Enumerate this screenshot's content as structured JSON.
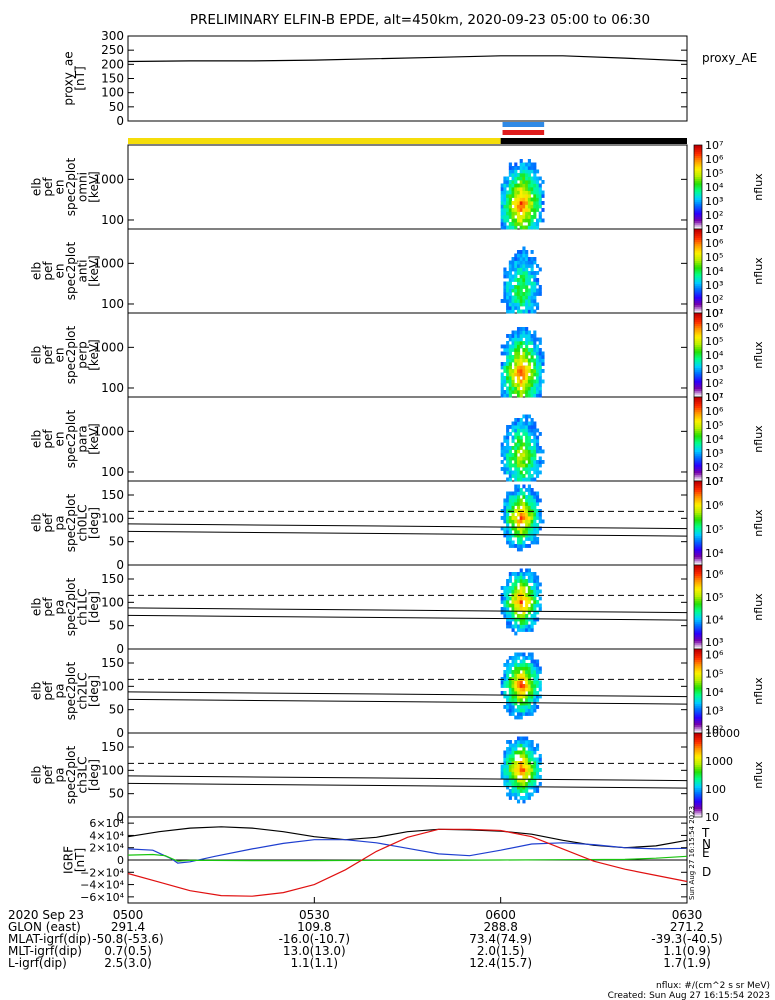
{
  "title": "PRELIMINARY ELFIN-B EPDE, alt=450km, 2020-09-23 05:00 to 06:30",
  "colors": {
    "line": "#000000",
    "sunlight": "#f5dd0a",
    "eclipse": "#000000",
    "science_blue": "#2f8ae6",
    "science_red": "#e01d1d",
    "igrf_T": "#000000",
    "igrf_N": "#1f3fd0",
    "igrf_E": "#19c40f",
    "igrf_D": "#e01010"
  },
  "colormap_stops": [
    "#ffffff",
    "#7a00a8",
    "#2a00ff",
    "#0066ff",
    "#00d2ff",
    "#00ff8c",
    "#26e000",
    "#b8f000",
    "#fff000",
    "#ff9a00",
    "#ff2a00",
    "#c40000"
  ],
  "time_axis": {
    "start": "05:00",
    "end": "06:30",
    "date_label": "2020 Sep 23",
    "ticks": [
      {
        "t": 0,
        "label": "0500"
      },
      {
        "t": 30,
        "label": "0530"
      },
      {
        "t": 60,
        "label": "0600"
      },
      {
        "t": 90,
        "label": "0630"
      }
    ]
  },
  "ephemeris": [
    {
      "label": "GLON (east)",
      "values": [
        "291.4",
        "109.8",
        "288.8",
        "271.2"
      ]
    },
    {
      "label": "MLAT-igrf(dip)",
      "values": [
        "-50.8(-53.6)",
        "-16.0(-10.7)",
        "73.4(74.9)",
        "-39.3(-40.5)"
      ]
    },
    {
      "label": "MLT-igrf(dip)",
      "values": [
        "0.7(0.5)",
        "13.0(13.0)",
        "2.0(1.5)",
        "1.1(0.9)"
      ]
    },
    {
      "label": "L-igrf(dip)",
      "values": [
        "2.5(3.0)",
        "1.1(1.1)",
        "12.4(15.7)",
        "1.7(1.9)"
      ]
    }
  ],
  "footer": {
    "units": "nflux: #/(cm^2 s sr MeV)",
    "created": "Created: Sun Aug 27 16:15:54 2023",
    "sidebar_stamp": "Sun Aug 27 16:15:54 2023"
  },
  "status_bars": {
    "sunlight_until_min": 60,
    "science_zones": [
      {
        "start": 60.3,
        "end": 67
      }
    ]
  },
  "chart_data": [
    {
      "type": "line",
      "name": "proxy_ae",
      "ylabel_lines": [
        "proxy_ae",
        "[nT]"
      ],
      "legend": "proxy_AE",
      "ylim": [
        0,
        300
      ],
      "yticks": [
        0,
        50,
        100,
        150,
        200,
        250,
        300
      ],
      "x": [
        0,
        10,
        20,
        30,
        40,
        50,
        60,
        70,
        80,
        90
      ],
      "values": [
        210,
        212,
        212,
        215,
        220,
        225,
        230,
        230,
        222,
        212
      ]
    },
    {
      "type": "heatmap",
      "name": "omni",
      "ylabel_lines": [
        "elb",
        "pef",
        "en",
        "spec2plot",
        "omni",
        "[keV]"
      ],
      "yscale": "log",
      "ylim": [
        60,
        7000
      ],
      "yticks": [
        {
          "v": 100,
          "label": "100"
        },
        {
          "v": 1000,
          "label": "1000"
        }
      ],
      "time_range": [
        60,
        67
      ],
      "cbar": {
        "label": "nflux",
        "log_min": 1,
        "log_max": 7,
        "ticks": [
          1,
          2,
          3,
          4,
          5,
          6,
          7
        ]
      }
    },
    {
      "type": "heatmap",
      "name": "anti",
      "ylabel_lines": [
        "elb",
        "pef",
        "en",
        "spec2plot",
        "anti",
        "[keV]"
      ],
      "yscale": "log",
      "ylim": [
        60,
        7000
      ],
      "yticks": [
        {
          "v": 100,
          "label": "100"
        },
        {
          "v": 1000,
          "label": "1000"
        }
      ],
      "time_range": [
        60,
        67
      ],
      "cbar": {
        "label": "nflux",
        "log_min": 1,
        "log_max": 7,
        "ticks": [
          1,
          2,
          3,
          4,
          5,
          6,
          7
        ]
      }
    },
    {
      "type": "heatmap",
      "name": "perp",
      "ylabel_lines": [
        "elb",
        "pef",
        "en",
        "spec2plot",
        "perp",
        "[keV]"
      ],
      "yscale": "log",
      "ylim": [
        60,
        7000
      ],
      "yticks": [
        {
          "v": 100,
          "label": "100"
        },
        {
          "v": 1000,
          "label": "1000"
        }
      ],
      "time_range": [
        60,
        67
      ],
      "cbar": {
        "label": "nflux",
        "log_min": 1,
        "log_max": 7,
        "ticks": [
          1,
          2,
          3,
          4,
          5,
          6,
          7
        ]
      }
    },
    {
      "type": "heatmap",
      "name": "para",
      "ylabel_lines": [
        "elb",
        "pef",
        "en",
        "spec2plot",
        "para",
        "[keV]"
      ],
      "yscale": "log",
      "ylim": [
        60,
        7000
      ],
      "yticks": [
        {
          "v": 100,
          "label": "100"
        },
        {
          "v": 1000,
          "label": "1000"
        }
      ],
      "time_range": [
        60,
        67
      ],
      "cbar": {
        "label": "nflux",
        "log_min": 1,
        "log_max": 7,
        "ticks": [
          1,
          2,
          3,
          4,
          5,
          6,
          7
        ]
      }
    },
    {
      "type": "heatmap",
      "name": "ch0LC",
      "ylabel_lines": [
        "elb",
        "pef",
        "pa",
        "spec2plot",
        "ch0LC",
        "[deg]"
      ],
      "yscale": "linear",
      "ylim": [
        0,
        180
      ],
      "yticks": [
        {
          "v": 0,
          "label": "0"
        },
        {
          "v": 50,
          "label": "50"
        },
        {
          "v": 100,
          "label": "100"
        },
        {
          "v": 150,
          "label": "150"
        }
      ],
      "refline": 115,
      "losscone": [
        88,
        78
      ],
      "time_range": [
        60,
        67
      ],
      "cbar": {
        "label": "nflux",
        "log_min": 3.5,
        "log_max": 7,
        "ticks": [
          4,
          5,
          6,
          7
        ]
      }
    },
    {
      "type": "heatmap",
      "name": "ch1LC",
      "ylabel_lines": [
        "elb",
        "pef",
        "pa",
        "spec2plot",
        "ch1LC",
        "[deg]"
      ],
      "yscale": "linear",
      "ylim": [
        0,
        180
      ],
      "yticks": [
        {
          "v": 0,
          "label": "0"
        },
        {
          "v": 50,
          "label": "50"
        },
        {
          "v": 100,
          "label": "100"
        },
        {
          "v": 150,
          "label": "150"
        }
      ],
      "refline": 115,
      "losscone": [
        88,
        78
      ],
      "time_range": [
        60,
        67
      ],
      "cbar": {
        "label": "nflux",
        "log_min": 2.7,
        "log_max": 6.4,
        "ticks": [
          3,
          4,
          5,
          6
        ]
      }
    },
    {
      "type": "heatmap",
      "name": "ch2LC",
      "ylabel_lines": [
        "elb",
        "pef",
        "pa",
        "spec2plot",
        "ch2LC",
        "[deg]"
      ],
      "yscale": "linear",
      "ylim": [
        0,
        180
      ],
      "yticks": [
        {
          "v": 0,
          "label": "0"
        },
        {
          "v": 50,
          "label": "50"
        },
        {
          "v": 100,
          "label": "100"
        },
        {
          "v": 150,
          "label": "150"
        }
      ],
      "refline": 115,
      "losscone": [
        88,
        78
      ],
      "time_range": [
        60,
        67
      ],
      "cbar": {
        "label": "nflux",
        "log_min": 1.8,
        "log_max": 6.3,
        "ticks": [
          2,
          3,
          4,
          5,
          6
        ]
      }
    },
    {
      "type": "heatmap",
      "name": "ch3LC",
      "ylabel_lines": [
        "elb",
        "pef",
        "pa",
        "spec2plot",
        "ch3LC",
        "[deg]"
      ],
      "yscale": "linear",
      "ylim": [
        0,
        180
      ],
      "yticks": [
        {
          "v": 0,
          "label": "0"
        },
        {
          "v": 50,
          "label": "50"
        },
        {
          "v": 100,
          "label": "100"
        },
        {
          "v": 150,
          "label": "150"
        }
      ],
      "refline": 115,
      "losscone": [
        88,
        78
      ],
      "time_range": [
        60,
        67
      ],
      "cbar": {
        "label": "nflux",
        "log_min": 1,
        "log_max": 4,
        "ticks": [
          {
            "v": 1,
            "label": "10"
          },
          {
            "v": 2,
            "label": "100"
          },
          {
            "v": 3,
            "label": "1000"
          },
          {
            "v": 4,
            "label": "10000"
          }
        ]
      }
    },
    {
      "type": "line",
      "name": "IGRF",
      "ylabel_lines": [
        "IGRF",
        "[nT]"
      ],
      "ylim": [
        -70000,
        70000
      ],
      "yticks": [
        {
          "v": -60000,
          "label": "−6×10⁴"
        },
        {
          "v": -40000,
          "label": "−4×10⁴"
        },
        {
          "v": -20000,
          "label": "−2×10⁴"
        },
        {
          "v": 0,
          "label": "0"
        },
        {
          "v": 20000,
          "label": "2×10⁴"
        },
        {
          "v": 40000,
          "label": "4×10⁴"
        },
        {
          "v": 60000,
          "label": "6×10⁴"
        }
      ],
      "zero_line": true,
      "series": [
        {
          "name": "T",
          "colorKey": "igrf_T",
          "x": [
            0,
            5,
            10,
            15,
            20,
            25,
            30,
            35,
            40,
            45,
            50,
            55,
            60,
            65,
            70,
            75,
            80,
            85,
            90
          ],
          "values": [
            38000,
            46000,
            52000,
            54000,
            52000,
            46000,
            38000,
            33000,
            37000,
            46000,
            50000,
            49000,
            47000,
            42000,
            32000,
            24000,
            20000,
            23000,
            32000
          ]
        },
        {
          "name": "N",
          "colorKey": "igrf_N",
          "x": [
            0,
            4,
            7,
            8,
            10,
            14,
            20,
            25,
            30,
            35,
            40,
            45,
            50,
            55,
            60,
            65,
            70,
            75,
            80,
            85,
            90
          ],
          "values": [
            18000,
            16000,
            2000,
            -5000,
            -3000,
            6000,
            18000,
            27000,
            33000,
            33000,
            28000,
            19000,
            10000,
            7000,
            16000,
            26000,
            28000,
            25000,
            20000,
            18000,
            19000
          ]
        },
        {
          "name": "E",
          "colorKey": "igrf_E",
          "x": [
            0,
            4,
            6,
            8,
            10,
            20,
            30,
            40,
            50,
            60,
            70,
            80,
            85,
            90
          ],
          "values": [
            8000,
            9000,
            7000,
            -2000,
            -500,
            -1000,
            -1000,
            -500,
            -500,
            0,
            500,
            1000,
            3000,
            6000
          ]
        },
        {
          "name": "D",
          "colorKey": "igrf_D",
          "x": [
            0,
            5,
            10,
            15,
            20,
            25,
            30,
            35,
            40,
            45,
            50,
            55,
            60,
            65,
            70,
            75,
            80,
            85,
            90
          ],
          "values": [
            -22000,
            -36000,
            -50000,
            -58000,
            -59000,
            -53000,
            -40000,
            -16000,
            14000,
            37000,
            50000,
            50000,
            48000,
            38000,
            18000,
            -2000,
            -15000,
            -25000,
            -35000
          ]
        }
      ]
    }
  ]
}
